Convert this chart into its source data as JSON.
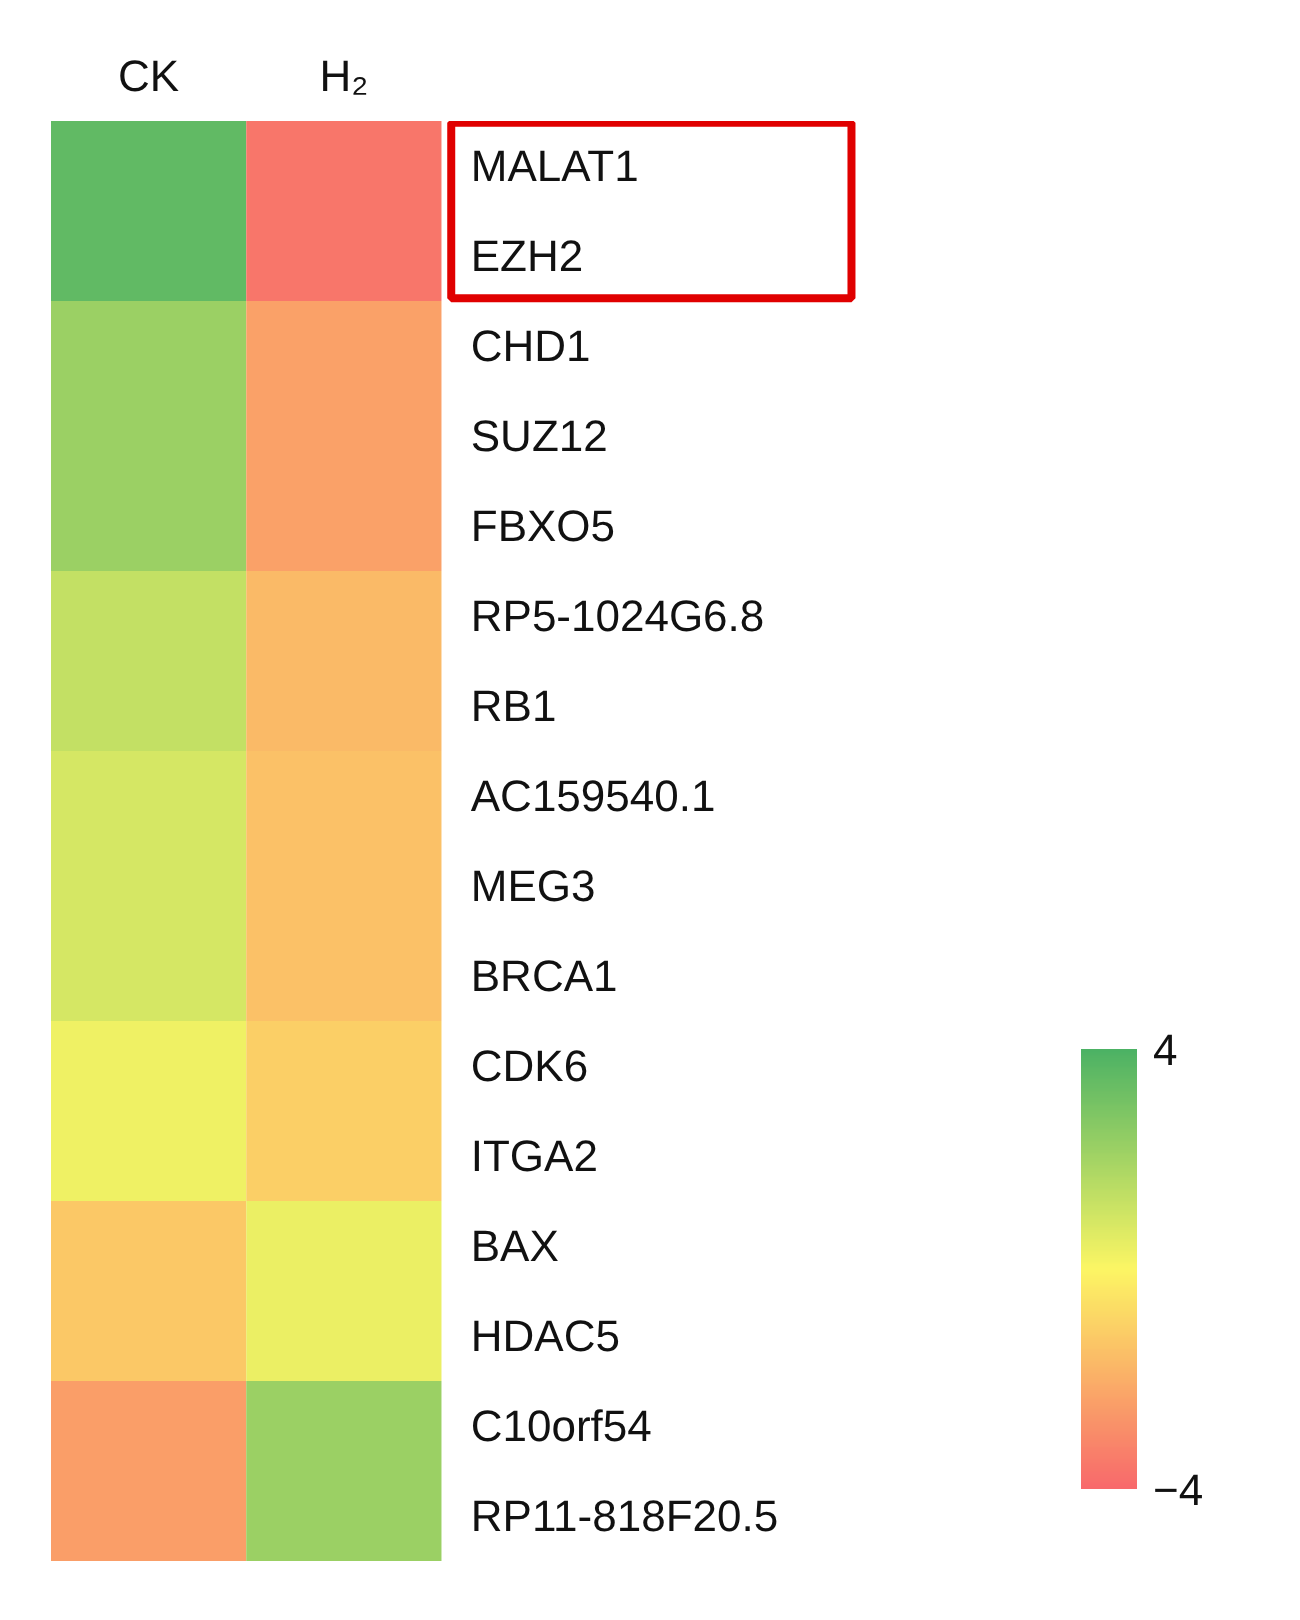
{
  "chart_data": {
    "type": "heatmap",
    "categories": [
      "CK",
      "H₂"
    ],
    "y_categories": [
      "MALAT1",
      "EZH2",
      "CHD1",
      "SUZ12",
      "FBXO5",
      "RP5-1024G6.8",
      "RB1",
      "AC159540.1",
      "MEG3",
      "BRCA1",
      "CDK6",
      "ITGA2",
      "BAX",
      "HDAC5",
      "C10orf54",
      "RP11-818F20.5"
    ],
    "cells": [
      [
        3.5,
        -3.6
      ],
      [
        3.5,
        -3.6
      ],
      [
        2.2,
        -2.4
      ],
      [
        2.2,
        -2.4
      ],
      [
        2.2,
        -2.4
      ],
      [
        1.3,
        -1.7
      ],
      [
        1.3,
        -1.7
      ],
      [
        0.9,
        -1.5
      ],
      [
        0.9,
        -1.5
      ],
      [
        0.9,
        -1.5
      ],
      [
        0.3,
        -1.1
      ],
      [
        0.3,
        -1.1
      ],
      [
        -1.3,
        0.4
      ],
      [
        -1.3,
        0.4
      ],
      [
        -2.5,
        2.2
      ],
      [
        -2.5,
        2.2
      ]
    ],
    "clim": [
      -4,
      4
    ],
    "cticks": [
      -4,
      4
    ]
  }
}
